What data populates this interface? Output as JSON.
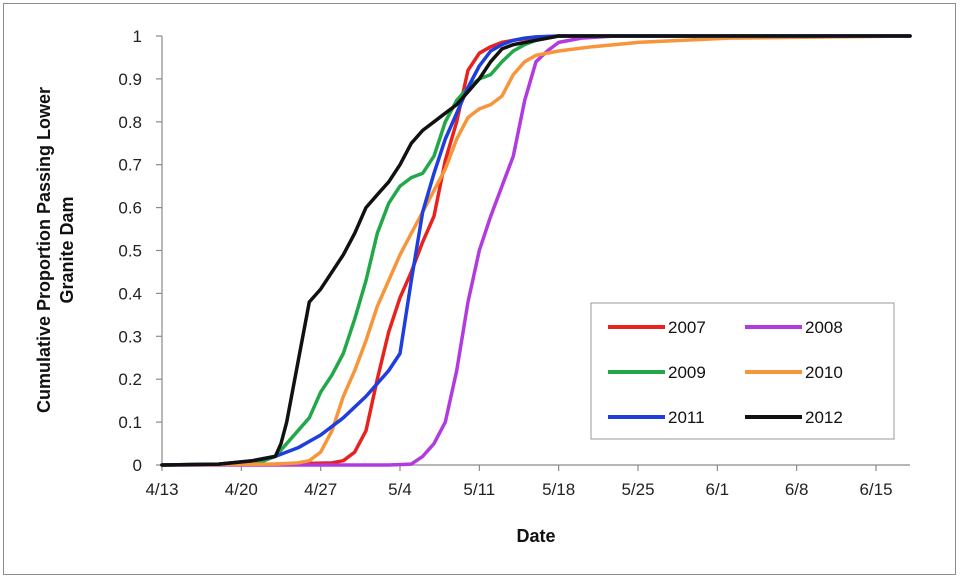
{
  "chart_data": {
    "type": "line",
    "xlabel": "Date",
    "ylabel_lines": [
      "Cumulative Proportion Passing Lower",
      "Granite Dam"
    ],
    "x_ticks": [
      "4/13",
      "4/20",
      "4/27",
      "5/4",
      "5/11",
      "5/18",
      "5/25",
      "6/1",
      "6/8",
      "6/15"
    ],
    "y_ticks": [
      "0",
      "0.1",
      "0.2",
      "0.3",
      "0.4",
      "0.5",
      "0.6",
      "0.7",
      "0.8",
      "0.9",
      "1"
    ],
    "xlim_days": [
      0,
      66
    ],
    "ylim": [
      0,
      1
    ],
    "grid": false,
    "legend_position": "lower-right",
    "series": [
      {
        "name": "2007",
        "color": "#e8231e",
        "x": [
          0,
          10,
          15,
          16,
          17,
          18,
          19,
          20,
          21,
          22,
          23,
          24,
          25,
          26,
          26.5,
          27,
          28,
          29,
          30,
          31,
          33,
          35,
          66
        ],
        "y": [
          0,
          0.002,
          0.005,
          0.01,
          0.03,
          0.08,
          0.2,
          0.31,
          0.39,
          0.45,
          0.52,
          0.58,
          0.71,
          0.8,
          0.86,
          0.92,
          0.96,
          0.975,
          0.985,
          0.99,
          0.997,
          1,
          1
        ]
      },
      {
        "name": "2008",
        "color": "#b23be0",
        "x": [
          0,
          20,
          22,
          23,
          24,
          25,
          26,
          27,
          28,
          29,
          30,
          31,
          32,
          33,
          34,
          35,
          37,
          40,
          66
        ],
        "y": [
          0,
          0,
          0.002,
          0.02,
          0.05,
          0.1,
          0.22,
          0.38,
          0.5,
          0.58,
          0.65,
          0.72,
          0.85,
          0.94,
          0.965,
          0.985,
          0.995,
          1,
          1
        ]
      },
      {
        "name": "2009",
        "color": "#22a84a",
        "x": [
          0,
          5,
          9,
          10,
          11,
          12,
          13,
          14,
          15,
          16,
          17,
          18,
          19,
          20,
          21,
          22,
          23,
          24,
          25,
          26,
          27,
          28,
          29,
          30,
          31,
          32,
          33,
          35,
          66
        ],
        "y": [
          0,
          0.002,
          0.01,
          0.02,
          0.05,
          0.08,
          0.11,
          0.17,
          0.21,
          0.26,
          0.34,
          0.43,
          0.54,
          0.61,
          0.65,
          0.67,
          0.68,
          0.72,
          0.8,
          0.85,
          0.88,
          0.9,
          0.91,
          0.94,
          0.965,
          0.98,
          0.99,
          1,
          1
        ]
      },
      {
        "name": "2010",
        "color": "#f7953a",
        "x": [
          0,
          10,
          12,
          13,
          14,
          15,
          16,
          17,
          18,
          19,
          20,
          21,
          22,
          23,
          24,
          25,
          26,
          27,
          28,
          29,
          30,
          31,
          32,
          33,
          35,
          38,
          42,
          46,
          50,
          66
        ],
        "y": [
          0,
          0.002,
          0.005,
          0.01,
          0.03,
          0.08,
          0.16,
          0.22,
          0.29,
          0.37,
          0.43,
          0.49,
          0.54,
          0.59,
          0.64,
          0.69,
          0.76,
          0.81,
          0.83,
          0.84,
          0.86,
          0.91,
          0.94,
          0.955,
          0.965,
          0.975,
          0.985,
          0.99,
          0.995,
          1
        ]
      },
      {
        "name": "2011",
        "color": "#1f3ede",
        "x": [
          0,
          5,
          8,
          10,
          12,
          14,
          16,
          18,
          20,
          21,
          22,
          23,
          24,
          25,
          26,
          27,
          28,
          29,
          30,
          31,
          32,
          33,
          35,
          66
        ],
        "y": [
          0,
          0.002,
          0.01,
          0.02,
          0.04,
          0.07,
          0.11,
          0.16,
          0.22,
          0.26,
          0.43,
          0.59,
          0.68,
          0.76,
          0.82,
          0.88,
          0.93,
          0.965,
          0.98,
          0.99,
          0.995,
          0.998,
          1,
          1
        ]
      },
      {
        "name": "2012",
        "color": "#111111",
        "x": [
          0,
          5,
          8,
          10,
          10.5,
          11,
          12,
          13,
          14,
          15,
          16,
          17,
          18,
          19,
          20,
          21,
          22,
          23,
          24,
          25,
          26,
          27,
          28,
          29,
          30,
          31,
          33,
          35,
          66
        ],
        "y": [
          0,
          0.002,
          0.01,
          0.02,
          0.05,
          0.1,
          0.24,
          0.38,
          0.41,
          0.45,
          0.49,
          0.54,
          0.6,
          0.63,
          0.66,
          0.7,
          0.75,
          0.78,
          0.8,
          0.82,
          0.84,
          0.87,
          0.9,
          0.94,
          0.97,
          0.98,
          0.99,
          1,
          1
        ]
      }
    ]
  }
}
